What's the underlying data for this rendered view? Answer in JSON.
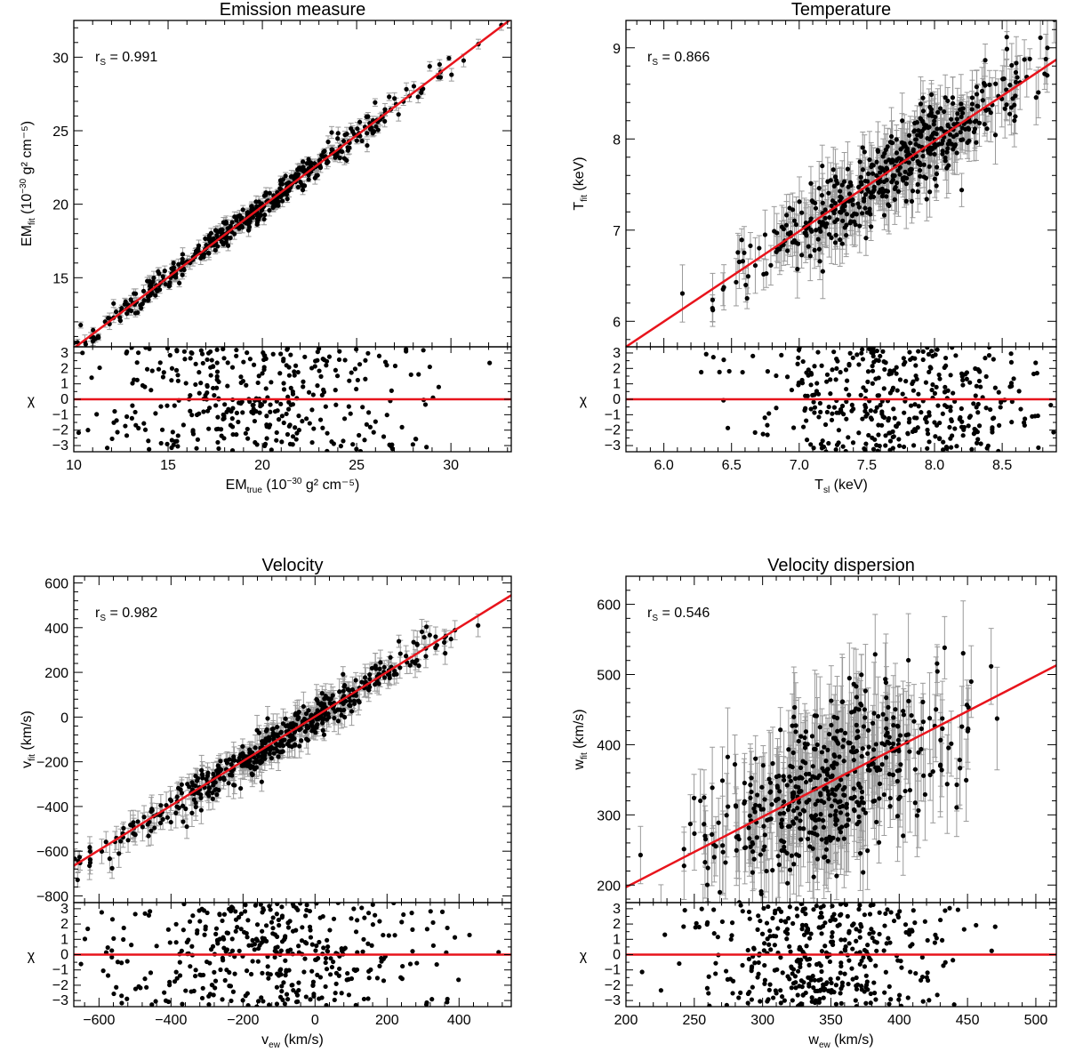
{
  "chart_data": [
    {
      "type": "scatter",
      "title": "Emission measure",
      "xlabel": {
        "main": "EM",
        "sub": "true",
        "rest": " (10",
        "sup": "−30",
        "tail": " g² cm⁻⁵)"
      },
      "ylabel": {
        "main": "EM",
        "sub": "fit",
        "rest": " (10",
        "sup": "−30",
        "tail": " g² cm⁻⁵)"
      },
      "rs_label": {
        "main": "r",
        "sub": "S",
        "rest": " = 0.991"
      },
      "xlim": [
        10,
        33.2
      ],
      "ylim": [
        10.3,
        32.5
      ],
      "res_ylim": [
        -3.4,
        3.4
      ],
      "xticks": [
        10,
        15,
        20,
        25,
        30
      ],
      "xtick_labels": [
        "10",
        "15",
        "20",
        "25",
        "30"
      ],
      "yticks": [
        15,
        20,
        25,
        30
      ],
      "ytick_labels": [
        "15",
        "20",
        "25",
        "30"
      ],
      "res_yticks": [
        -3,
        -2,
        -1,
        0,
        1,
        2,
        3
      ],
      "res_ytick_labels": [
        "−3",
        "−2",
        "−1",
        "0",
        "1",
        "2",
        "3"
      ],
      "res_ylabel": "χ",
      "fit_line": {
        "x": [
          10,
          33.2
        ],
        "y": [
          10.2,
          32.6
        ]
      },
      "scatter_model": {
        "x_center": 19,
        "x_sd": 4.5,
        "slope": 0.965,
        "intercept": 0.55,
        "y_noise": 0.45,
        "err": 0.3,
        "n": 450
      }
    },
    {
      "type": "scatter",
      "title": "Temperature",
      "xlabel": {
        "main": "T",
        "sub": "sl",
        "rest": " (keV)",
        "sup": "",
        "tail": ""
      },
      "ylabel": {
        "main": "T",
        "sub": "fit",
        "rest": " (keV)",
        "sup": "",
        "tail": ""
      },
      "rs_label": {
        "main": "r",
        "sub": "S",
        "rest": " = 0.866"
      },
      "xlim": [
        5.72,
        8.9
      ],
      "ylim": [
        5.72,
        9.3
      ],
      "res_ylim": [
        -3.4,
        3.4
      ],
      "xticks": [
        6.0,
        6.5,
        7.0,
        7.5,
        8.0,
        8.5
      ],
      "xtick_labels": [
        "6.0",
        "6.5",
        "7.0",
        "7.5",
        "8.0",
        "8.5"
      ],
      "yticks": [
        6,
        7,
        8,
        9
      ],
      "ytick_labels": [
        "6",
        "7",
        "8",
        "9"
      ],
      "res_yticks": [
        -3,
        -2,
        -1,
        0,
        1,
        2,
        3
      ],
      "res_ytick_labels": [
        "−3",
        "−2",
        "−1",
        "0",
        "1",
        "2",
        "3"
      ],
      "res_ylabel": "χ",
      "fit_line": {
        "x": [
          5.72,
          8.9
        ],
        "y": [
          5.72,
          8.87
        ]
      },
      "scatter_model": {
        "x_center": 7.75,
        "x_sd": 0.55,
        "slope": 0.99,
        "intercept": 0.05,
        "y_noise": 0.22,
        "err": 0.22,
        "n": 500
      }
    },
    {
      "type": "scatter",
      "title": "Velocity",
      "xlabel": {
        "main": "v",
        "sub": "ew",
        "rest": " (km/s)",
        "sup": "",
        "tail": ""
      },
      "ylabel": {
        "main": "v",
        "sub": "fit",
        "rest": " (km/s)",
        "sup": "",
        "tail": ""
      },
      "rs_label": {
        "main": "r",
        "sub": "S",
        "rest": " = 0.982"
      },
      "xlim": [
        -670,
        545
      ],
      "ylim": [
        -830,
        630
      ],
      "res_ylim": [
        -3.4,
        3.4
      ],
      "xticks": [
        -600,
        -400,
        -200,
        0,
        200,
        400
      ],
      "xtick_labels": [
        "−600",
        "−400",
        "−200",
        "0",
        "200",
        "400"
      ],
      "yticks": [
        -800,
        -600,
        -400,
        -200,
        0,
        200,
        400,
        600
      ],
      "ytick_labels": [
        "−800",
        "−600",
        "−400",
        "−200",
        "0",
        "200",
        "400",
        "600"
      ],
      "res_yticks": [
        -3,
        -2,
        -1,
        0,
        1,
        2,
        3
      ],
      "res_ytick_labels": [
        "−3",
        "−2",
        "−1",
        "0",
        "1",
        "2",
        "3"
      ],
      "res_ylabel": "χ",
      "fit_line": {
        "x": [
          -670,
          545
        ],
        "y": [
          -665,
          545
        ]
      },
      "scatter_model": {
        "x_center": -120,
        "x_sd": 230,
        "slope": 0.99,
        "intercept": -5,
        "y_noise": 40,
        "err": 45,
        "n": 500
      }
    },
    {
      "type": "scatter",
      "title": "Velocity dispersion",
      "xlabel": {
        "main": "w",
        "sub": "ew",
        "rest": " (km/s)",
        "sup": "",
        "tail": ""
      },
      "ylabel": {
        "main": "w",
        "sub": "fit",
        "rest": " (km/s)",
        "sup": "",
        "tail": ""
      },
      "rs_label": {
        "main": "r",
        "sub": "S",
        "rest": " = 0.546"
      },
      "xlim": [
        200,
        515
      ],
      "ylim": [
        175,
        640
      ],
      "res_ylim": [
        -3.4,
        3.4
      ],
      "xticks": [
        200,
        250,
        300,
        350,
        400,
        450,
        500
      ],
      "xtick_labels": [
        "200",
        "250",
        "300",
        "350",
        "400",
        "450",
        "500"
      ],
      "yticks": [
        200,
        300,
        400,
        500,
        600
      ],
      "ytick_labels": [
        "200",
        "300",
        "400",
        "500",
        "600"
      ],
      "res_yticks": [
        -3,
        -2,
        -1,
        0,
        1,
        2,
        3
      ],
      "res_ytick_labels": [
        "−3",
        "−2",
        "−1",
        "0",
        "1",
        "2",
        "3"
      ],
      "res_ylabel": "χ",
      "fit_line": {
        "x": [
          200,
          515
        ],
        "y": [
          197,
          513
        ]
      },
      "scatter_model": {
        "x_center": 345,
        "x_sd": 45,
        "slope": 0.95,
        "intercept": 12,
        "y_noise": 55,
        "err": 50,
        "n": 500
      }
    }
  ],
  "colors": {
    "fit_line": "#e8141c",
    "points": "#000000",
    "error_bars": "#9a9a9a",
    "axes": "#000000"
  }
}
